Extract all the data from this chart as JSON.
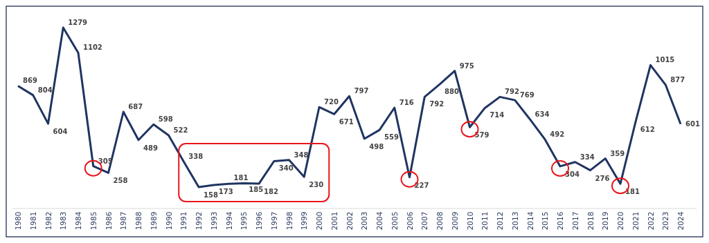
{
  "chart_data": {
    "type": "line",
    "categories": [
      "1980",
      "1981",
      "1982",
      "1983",
      "1984",
      "1985",
      "1986",
      "1987",
      "1988",
      "1989",
      "1990",
      "1991",
      "1992",
      "1993",
      "1994",
      "1995",
      "1996",
      "1997",
      "1998",
      "1999",
      "2000",
      "2001",
      "2002",
      "2003",
      "2004",
      "2005",
      "2006",
      "2007",
      "2008",
      "2009",
      "2010",
      "2011",
      "2012",
      "2013",
      "2014",
      "2015",
      "2016",
      "2017",
      "2018",
      "2019",
      "2020",
      "2021",
      "2022",
      "2023",
      "2024"
    ],
    "series": [
      {
        "color": "#1f3461",
        "values": [
          869,
          804,
          604,
          1279,
          1102,
          305,
          258,
          687,
          489,
          598,
          522,
          338,
          158,
          173,
          181,
          185,
          182,
          340,
          348,
          230,
          720,
          671,
          797,
          498,
          559,
          716,
          227,
          792,
          880,
          975,
          579,
          714,
          792,
          769,
          634,
          492,
          304,
          334,
          276,
          359,
          181,
          612,
          1015,
          877,
          601
        ]
      }
    ],
    "data_labels": true,
    "tick_labels": "x",
    "grid": false,
    "marker": "none",
    "line_style": "solid"
  }
}
